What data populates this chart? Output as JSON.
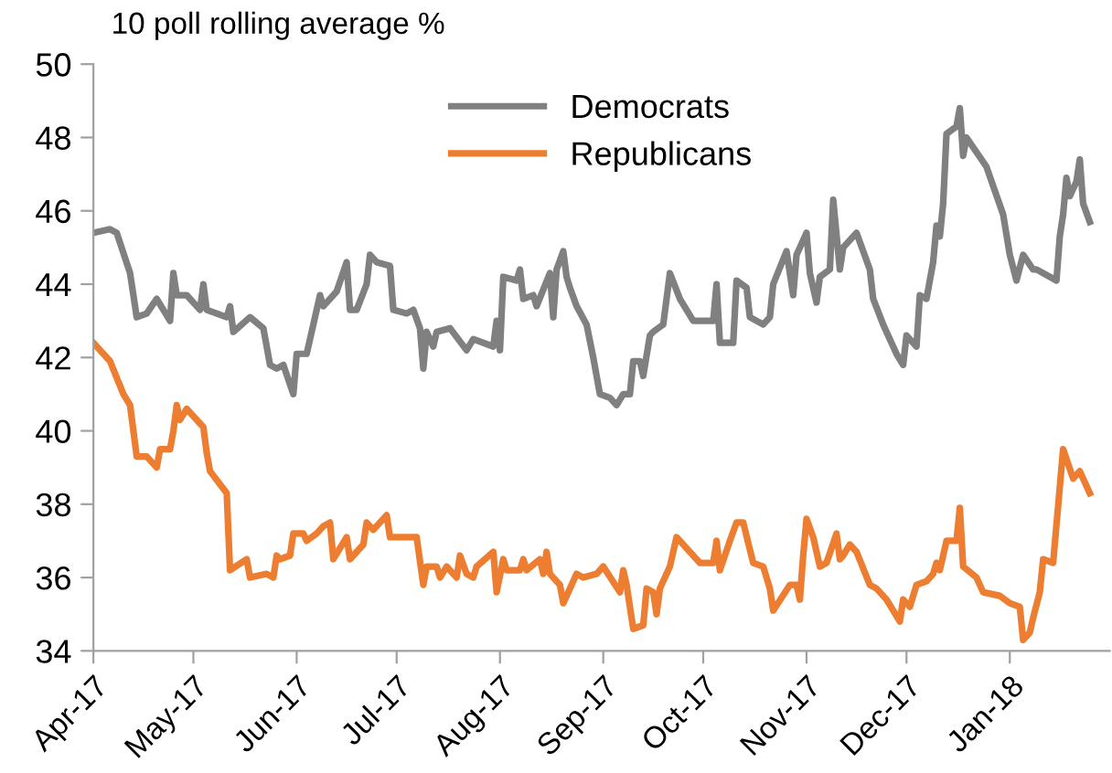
{
  "chart_data": {
    "type": "line",
    "title": "10 poll rolling average %",
    "x": [
      "2017-04-01",
      "2017-04-06",
      "2017-04-08",
      "2017-04-12",
      "2017-04-14",
      "2017-04-17",
      "2017-04-20",
      "2017-04-24",
      "2017-04-25",
      "2017-04-26",
      "2017-04-29",
      "2017-05-03",
      "2017-05-04",
      "2017-05-05",
      "2017-05-11",
      "2017-05-12",
      "2017-05-13",
      "2017-05-18",
      "2017-05-22",
      "2017-05-24",
      "2017-05-26",
      "2017-05-28",
      "2017-05-31",
      "2017-06-01",
      "2017-06-04",
      "2017-06-08",
      "2017-06-09",
      "2017-06-13",
      "2017-06-16",
      "2017-06-17",
      "2017-06-19",
      "2017-06-22",
      "2017-06-23",
      "2017-06-25",
      "2017-06-29",
      "2017-06-30",
      "2017-07-04",
      "2017-07-06",
      "2017-07-08",
      "2017-07-09",
      "2017-07-10",
      "2017-07-12",
      "2017-07-13",
      "2017-07-17",
      "2017-07-22",
      "2017-07-24",
      "2017-07-30",
      "2017-07-31",
      "2017-08-01",
      "2017-08-02",
      "2017-08-06",
      "2017-08-07",
      "2017-08-08",
      "2017-08-11",
      "2017-08-12",
      "2017-08-16",
      "2017-08-17",
      "2017-08-18",
      "2017-08-20",
      "2017-08-21",
      "2017-08-22",
      "2017-08-24",
      "2017-08-27",
      "2017-08-29",
      "2017-08-31",
      "2017-09-03",
      "2017-09-05",
      "2017-09-07",
      "2017-09-09",
      "2017-09-10",
      "2017-09-12",
      "2017-09-13",
      "2017-09-15",
      "2017-09-16",
      "2017-09-19",
      "2017-09-21",
      "2017-09-24",
      "2017-09-28",
      "2017-10-04",
      "2017-10-05",
      "2017-10-06",
      "2017-10-10",
      "2017-10-11",
      "2017-10-14",
      "2017-10-15",
      "2017-10-19",
      "2017-10-21",
      "2017-10-22",
      "2017-10-26",
      "2017-10-28",
      "2017-10-29",
      "2017-11-01",
      "2017-11-02",
      "2017-11-04",
      "2017-11-05",
      "2017-11-08",
      "2017-11-09",
      "2017-11-11",
      "2017-11-12",
      "2017-11-16",
      "2017-11-20",
      "2017-11-21",
      "2017-11-24",
      "2017-11-28",
      "2017-11-30",
      "2017-12-01",
      "2017-12-04",
      "2017-12-05",
      "2017-12-07",
      "2017-12-09",
      "2017-12-10",
      "2017-12-11",
      "2017-12-12",
      "2017-12-13",
      "2017-12-16",
      "2017-12-17",
      "2017-12-18",
      "2017-12-19",
      "2017-12-25",
      "2017-12-30",
      "2018-01-01",
      "2018-01-03",
      "2018-01-05",
      "2018-01-08",
      "2018-01-09",
      "2018-01-15",
      "2018-01-16",
      "2018-01-17",
      "2018-01-18",
      "2018-01-19",
      "2018-01-21",
      "2018-01-22",
      "2018-01-23",
      "2018-01-25"
    ],
    "series": [
      {
        "name": "Democrats",
        "color": "#808080",
        "values": [
          45.4,
          45.5,
          45.4,
          44.3,
          43.1,
          43.2,
          43.6,
          43.0,
          44.3,
          43.7,
          43.7,
          43.3,
          44.0,
          43.3,
          43.1,
          43.4,
          42.7,
          43.1,
          42.8,
          41.8,
          41.7,
          41.8,
          41.0,
          42.1,
          42.1,
          43.7,
          43.4,
          43.8,
          44.6,
          43.3,
          43.3,
          44.0,
          44.8,
          44.6,
          44.5,
          43.3,
          43.2,
          43.3,
          42.8,
          41.7,
          42.7,
          42.3,
          42.7,
          42.8,
          42.2,
          42.5,
          42.3,
          43.0,
          42.2,
          44.2,
          44.1,
          44.4,
          43.6,
          43.7,
          43.4,
          44.3,
          43.1,
          44.4,
          44.9,
          44.2,
          43.9,
          43.4,
          42.9,
          42.0,
          41.0,
          40.9,
          40.7,
          41.0,
          41.0,
          41.9,
          41.9,
          41.5,
          42.6,
          42.7,
          42.9,
          44.3,
          43.6,
          43.0,
          43.0,
          44.0,
          42.4,
          42.4,
          44.1,
          43.9,
          43.1,
          42.9,
          43.1,
          44.0,
          44.9,
          43.7,
          44.8,
          45.4,
          44.3,
          43.5,
          44.2,
          44.4,
          46.3,
          44.4,
          45.0,
          45.4,
          44.4,
          43.6,
          42.9,
          42.1,
          41.8,
          42.6,
          42.3,
          43.7,
          43.6,
          44.6,
          45.6,
          45.3,
          46.2,
          48.1,
          48.3,
          48.8,
          47.5,
          48.0,
          47.2,
          45.9,
          44.8,
          44.1,
          44.8,
          44.4,
          44.4,
          44.1,
          45.3,
          45.9,
          46.9,
          46.4,
          46.8,
          47.4,
          46.2,
          45.7
        ]
      },
      {
        "name": "Republicans",
        "color": "#ed7d31",
        "x": [
          "2017-04-01",
          "2017-04-06",
          "2017-04-10",
          "2017-04-12",
          "2017-04-14",
          "2017-04-17",
          "2017-04-20",
          "2017-04-21",
          "2017-04-24",
          "2017-04-25",
          "2017-04-26",
          "2017-04-27",
          "2017-04-29",
          "2017-05-04",
          "2017-05-05",
          "2017-05-06",
          "2017-05-11",
          "2017-05-12",
          "2017-05-17",
          "2017-05-18",
          "2017-05-23",
          "2017-05-25",
          "2017-05-26",
          "2017-05-27",
          "2017-05-30",
          "2017-05-31",
          "2017-06-03",
          "2017-06-04",
          "2017-06-07",
          "2017-06-09",
          "2017-06-11",
          "2017-06-12",
          "2017-06-16",
          "2017-06-17",
          "2017-06-21",
          "2017-06-22",
          "2017-06-24",
          "2017-06-27",
          "2017-06-28",
          "2017-06-29",
          "2017-07-07",
          "2017-07-09",
          "2017-07-10",
          "2017-07-13",
          "2017-07-14",
          "2017-07-16",
          "2017-07-19",
          "2017-07-20",
          "2017-07-22",
          "2017-07-24",
          "2017-07-25",
          "2017-07-30",
          "2017-07-31",
          "2017-08-02",
          "2017-08-03",
          "2017-08-07",
          "2017-08-08",
          "2017-08-09",
          "2017-08-13",
          "2017-08-14",
          "2017-08-15",
          "2017-08-16",
          "2017-08-19",
          "2017-08-20",
          "2017-08-24",
          "2017-08-26",
          "2017-08-30",
          "2017-09-01",
          "2017-09-06",
          "2017-09-07",
          "2017-09-08",
          "2017-09-10",
          "2017-09-13",
          "2017-09-14",
          "2017-09-16",
          "2017-09-17",
          "2017-09-18",
          "2017-09-21",
          "2017-09-23",
          "2017-09-24",
          "2017-09-27",
          "2017-09-30",
          "2017-10-04",
          "2017-10-05",
          "2017-10-06",
          "2017-10-09",
          "2017-10-11",
          "2017-10-13",
          "2017-10-16",
          "2017-10-19",
          "2017-10-21",
          "2017-10-22",
          "2017-10-27",
          "2017-10-29",
          "2017-10-30",
          "2017-10-31",
          "2017-11-01",
          "2017-11-03",
          "2017-11-05",
          "2017-11-07",
          "2017-11-10",
          "2017-11-11",
          "2017-11-12",
          "2017-11-14",
          "2017-11-16",
          "2017-11-20",
          "2017-11-22",
          "2017-11-25",
          "2017-11-29",
          "2017-11-30",
          "2017-12-02",
          "2017-12-04",
          "2017-12-07",
          "2017-12-09",
          "2017-12-10",
          "2017-12-11",
          "2017-12-13",
          "2017-12-16",
          "2017-12-17",
          "2017-12-18",
          "2017-12-22",
          "2017-12-24",
          "2017-12-29",
          "2018-01-01",
          "2018-01-04",
          "2018-01-05",
          "2018-01-07",
          "2018-01-08",
          "2018-01-10",
          "2018-01-11",
          "2018-01-14",
          "2018-01-17",
          "2018-01-20",
          "2018-01-22",
          "2018-01-25"
        ],
        "values": [
          42.4,
          41.9,
          41.0,
          40.7,
          39.3,
          39.3,
          39.0,
          39.5,
          39.5,
          40.0,
          40.7,
          40.3,
          40.6,
          40.1,
          39.4,
          38.9,
          38.3,
          36.2,
          36.5,
          36.0,
          36.1,
          36.0,
          36.6,
          36.5,
          36.6,
          37.2,
          37.2,
          37.0,
          37.2,
          37.4,
          37.5,
          36.5,
          37.1,
          36.5,
          36.9,
          37.5,
          37.3,
          37.6,
          37.7,
          37.1,
          37.1,
          35.8,
          36.3,
          36.3,
          36.0,
          36.3,
          36.0,
          36.6,
          36.1,
          36.0,
          36.3,
          36.7,
          35.6,
          36.5,
          36.2,
          36.2,
          36.5,
          36.2,
          36.5,
          36.1,
          36.7,
          36.1,
          35.8,
          35.3,
          36.1,
          36.0,
          36.1,
          36.3,
          35.6,
          36.2,
          35.8,
          34.6,
          34.7,
          35.7,
          35.6,
          35.0,
          35.7,
          36.3,
          37.1,
          37.0,
          36.7,
          36.4,
          36.4,
          37.0,
          36.2,
          37.0,
          37.5,
          37.5,
          36.4,
          36.3,
          35.7,
          35.1,
          35.8,
          35.8,
          35.4,
          36.6,
          37.6,
          37.1,
          36.3,
          36.4,
          37.2,
          36.5,
          36.6,
          36.9,
          36.7,
          35.8,
          35.7,
          35.4,
          34.8,
          35.4,
          35.2,
          35.8,
          35.9,
          36.1,
          36.4,
          36.2,
          37.0,
          37.0,
          37.9,
          36.3,
          36.0,
          35.6,
          35.5,
          35.3,
          35.2,
          34.3,
          34.5,
          34.9,
          35.6,
          36.5,
          36.4,
          39.5,
          38.7,
          38.9,
          38.3
        ]
      }
    ],
    "xlim": [
      "2017-04-01",
      "2018-01-31"
    ],
    "xticks": [
      {
        "value": "2017-04-01",
        "label": "Apr-17"
      },
      {
        "value": "2017-05-01",
        "label": "May-17"
      },
      {
        "value": "2017-06-01",
        "label": "Jun-17"
      },
      {
        "value": "2017-07-01",
        "label": "Jul-17"
      },
      {
        "value": "2017-08-01",
        "label": "Aug-17"
      },
      {
        "value": "2017-09-01",
        "label": "Sep-17"
      },
      {
        "value": "2017-10-01",
        "label": "Oct-17"
      },
      {
        "value": "2017-11-01",
        "label": "Nov-17"
      },
      {
        "value": "2017-12-01",
        "label": "Dec-17"
      },
      {
        "value": "2018-01-01",
        "label": "Jan-18"
      }
    ],
    "ylim": [
      34,
      50
    ],
    "yticks": [
      34,
      36,
      38,
      40,
      42,
      44,
      46,
      48,
      50
    ],
    "grid": false,
    "legend": "top",
    "marker": "none",
    "line_style": "solid"
  }
}
